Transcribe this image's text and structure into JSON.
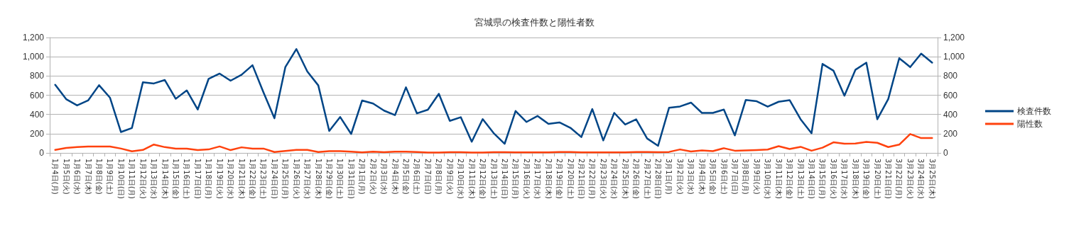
{
  "chart_data": {
    "type": "line",
    "title": "宮城県の検査件数と陽性者数",
    "categories": [
      "1月4日(月)",
      "1月5日(火)",
      "1月6日(水)",
      "1月7日(木)",
      "1月8日(金)",
      "1月9日(土)",
      "1月10日(日)",
      "1月11日(月)",
      "1月12日(火)",
      "1月13日(水)",
      "1月14日(木)",
      "1月15日(金)",
      "1月16日(土)",
      "1月17日(日)",
      "1月18日(月)",
      "1月19日(火)",
      "1月20日(水)",
      "1月21日(木)",
      "1月22日(金)",
      "1月23日(土)",
      "1月24日(日)",
      "1月25日(月)",
      "1月26日(火)",
      "1月27日(水)",
      "1月28日(木)",
      "1月29日(金)",
      "1月30日(土)",
      "1月31日(日)",
      "2月1日(月)",
      "2月2日(火)",
      "2月3日(水)",
      "2月4日(木)",
      "2月5日(金)",
      "2月6日(土)",
      "2月7日(日)",
      "2月8日(月)",
      "2月9日(火)",
      "2月10日(水)",
      "2月11日(木)",
      "2月12日(金)",
      "2月13日(土)",
      "2月14日(日)",
      "2月15日(月)",
      "2月16日(火)",
      "2月17日(水)",
      "2月18日(木)",
      "2月19日(金)",
      "2月20日(土)",
      "2月21日(日)",
      "2月22日(月)",
      "2月23日(火)",
      "2月24日(水)",
      "2月25日(木)",
      "2月26日(金)",
      "2月27日(土)",
      "2月28日(日)",
      "3月1日(月)",
      "3月2日(火)",
      "3月3日(水)",
      "3月4日(木)",
      "3月5日(金)",
      "3月6日(土)",
      "3月7日(日)",
      "3月8日(月)",
      "3月9日(火)",
      "3月10日(水)",
      "3月11日(木)",
      "3月12日(金)",
      "3月13日(土)",
      "3月14日(日)",
      "3月15日(月)",
      "3月16日(火)",
      "3月17日(水)",
      "3月18日(木)",
      "3月19日(金)",
      "3月20日(土)",
      "3月21日(日)",
      "3月22日(月)",
      "3月23日(火)",
      "3月24日(水)",
      "3月25日(木)"
    ],
    "series": [
      {
        "name": "検査件数",
        "color": "#004586",
        "values": [
          708,
          559,
          494,
          545,
          704,
          574,
          217,
          259,
          735,
          722,
          758,
          563,
          650,
          451,
          771,
          825,
          751,
          813,
          912,
          630,
          360,
          894,
          1080,
          847,
          702,
          228,
          373,
          197,
          545,
          514,
          440,
          393,
          682,
          411,
          449,
          615,
          333,
          371,
          116,
          351,
          206,
          94,
          436,
          322,
          384,
          302,
          317,
          261,
          165,
          456,
          130,
          416,
          295,
          349,
          150,
          74,
          469,
          483,
          523,
          416,
          416,
          451,
          182,
          551,
          537,
          481,
          532,
          549,
          350,
          205,
          925,
          855,
          595,
          864,
          939,
          350,
          560,
          985,
          892,
          1032,
          939
        ]
      },
      {
        "name": "陽性数",
        "color": "#ff420e",
        "values": [
          31,
          51,
          60,
          67,
          67,
          67,
          45,
          16,
          31,
          87,
          60,
          45,
          45,
          29,
          36,
          67,
          29,
          58,
          45,
          45,
          9,
          20,
          31,
          31,
          9,
          18,
          18,
          13,
          5,
          12,
          8,
          12,
          12,
          10,
          3,
          3,
          8,
          8,
          3,
          3,
          8,
          8,
          5,
          5,
          5,
          5,
          10,
          10,
          5,
          5,
          5,
          5,
          5,
          10,
          10,
          8,
          10,
          36,
          15,
          26,
          19,
          49,
          23,
          26,
          30,
          35,
          70,
          40,
          63,
          23,
          54,
          110,
          96,
          98,
          114,
          105,
          61,
          86,
          196,
          154,
          154
        ]
      }
    ],
    "ylim": [
      0,
      1200
    ],
    "yticks": [
      0,
      200,
      400,
      600,
      800,
      {
        "value": 1000,
        "label": "1,000"
      },
      {
        "value": 1200,
        "label": "1,200"
      }
    ],
    "y2lim": [
      0,
      1200
    ],
    "y2ticks": [
      0,
      200,
      400,
      600,
      800,
      {
        "value": 1000,
        "label": "1,000"
      },
      {
        "value": 1200,
        "label": "1,200"
      }
    ],
    "grid": "y",
    "legend": "right",
    "marker": "none",
    "line_style": "solid"
  }
}
